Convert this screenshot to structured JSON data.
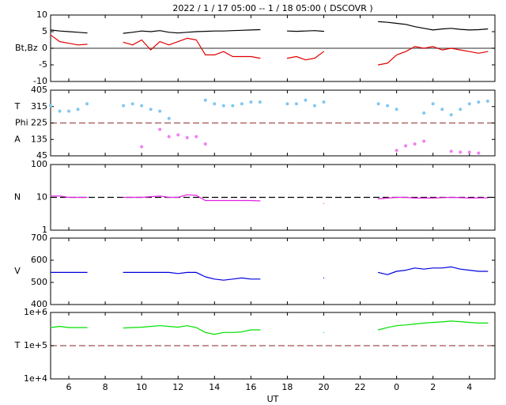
{
  "chart_data": [
    {
      "type": "line",
      "title": "2022 /  1 / 17   05:00 --  1 / 18   05:00 ( DSCOVR )",
      "xlim": [
        5,
        29.4
      ],
      "x": [
        5,
        5.5,
        6,
        6.5,
        7,
        7.5,
        8,
        8.5,
        9,
        9.5,
        10,
        10.5,
        11,
        11.5,
        12,
        12.5,
        13,
        13.5,
        14,
        14.5,
        15,
        15.5,
        16,
        16.5,
        17,
        17.5,
        18,
        18.5,
        19,
        19.5,
        20,
        20.5,
        21,
        21.5,
        22,
        22.5,
        23,
        23.5,
        24,
        24.5,
        25,
        25.5,
        26,
        26.5,
        27,
        27.5,
        28,
        28.5,
        29
      ],
      "ylim": [
        -10,
        10
      ],
      "yticks": [
        -10,
        -5,
        0,
        5,
        10
      ],
      "log": false,
      "ylabels": [
        {
          "value": 0,
          "label": "Bt,Bz"
        }
      ],
      "ref_line": {
        "value": 0,
        "color": "#555555",
        "dashed": false
      },
      "series": [
        {
          "color": "#000000",
          "values": [
            5.5,
            5.2,
            5,
            4.8,
            4.6,
            null,
            null,
            null,
            4.5,
            4.8,
            5.2,
            5,
            5.3,
            4.8,
            4.6,
            4.8,
            5,
            5.1,
            5.2,
            5.2,
            5.3,
            5.4,
            5.5,
            5.6,
            null,
            null,
            5.2,
            5.1,
            5.2,
            5.3,
            5.1,
            null,
            null,
            null,
            null,
            null,
            8,
            7.8,
            7.5,
            7.2,
            6.5,
            6,
            5.5,
            5.8,
            6,
            5.7,
            5.5,
            5.6,
            5.8
          ]
        },
        {
          "color": "#e00000",
          "values": [
            4,
            2,
            1.5,
            1,
            1.2,
            null,
            null,
            null,
            1.8,
            1,
            2.5,
            -0.5,
            2,
            1,
            2,
            3,
            2.5,
            -2,
            -2,
            -1,
            -2.5,
            -2.5,
            -2.5,
            -3,
            null,
            null,
            -3,
            -2.5,
            -3.5,
            -3,
            -1,
            null,
            null,
            null,
            null,
            null,
            -5,
            -4.5,
            -2,
            -1,
            0.5,
            0,
            0.5,
            -0.5,
            0,
            -0.5,
            -1,
            -1.5,
            -1
          ]
        }
      ]
    },
    {
      "type": "scatter",
      "xlim": [
        5,
        29.4
      ],
      "x": [
        5,
        5.5,
        6,
        6.5,
        7,
        7.5,
        8,
        8.5,
        9,
        9.5,
        10,
        10.5,
        11,
        11.5,
        12,
        12.5,
        13,
        13.5,
        14,
        14.5,
        15,
        15.5,
        16,
        16.5,
        17,
        17.5,
        18,
        18.5,
        19,
        19.5,
        20,
        20.5,
        21,
        21.5,
        22,
        22.5,
        23,
        23.5,
        24,
        24.5,
        25,
        25.5,
        26,
        26.5,
        27,
        27.5,
        28,
        28.5,
        29
      ],
      "ylim": [
        45,
        405
      ],
      "yticks": [
        45,
        135,
        225,
        315,
        405
      ],
      "log": false,
      "ylabels": [
        {
          "value": 315,
          "label": "T"
        },
        {
          "value": 225,
          "label": "Phi"
        },
        {
          "value": 135,
          "label": "A"
        }
      ],
      "ref_line": {
        "value": 225,
        "color": "#a05050",
        "dashed": true
      },
      "series": [
        {
          "color": "#80c8f0",
          "values": [
            320,
            290,
            290,
            300,
            330,
            null,
            null,
            null,
            320,
            330,
            320,
            300,
            290,
            250,
            null,
            null,
            null,
            350,
            330,
            320,
            320,
            330,
            340,
            340,
            null,
            null,
            330,
            330,
            350,
            320,
            340,
            null,
            null,
            null,
            null,
            null,
            330,
            320,
            300,
            null,
            null,
            280,
            330,
            300,
            270,
            300,
            330,
            340,
            345
          ]
        },
        {
          "color": "#f080f0",
          "values": [
            null,
            null,
            null,
            null,
            null,
            null,
            null,
            null,
            null,
            null,
            95,
            null,
            190,
            150,
            160,
            145,
            150,
            110,
            null,
            null,
            null,
            null,
            null,
            null,
            null,
            null,
            null,
            null,
            null,
            null,
            null,
            null,
            null,
            null,
            null,
            null,
            null,
            null,
            75,
            100,
            110,
            125,
            null,
            null,
            70,
            65,
            65,
            60,
            null
          ]
        }
      ]
    },
    {
      "type": "line",
      "xlim": [
        5,
        29.4
      ],
      "x": [
        5,
        5.5,
        6,
        6.5,
        7,
        7.5,
        8,
        8.5,
        9,
        9.5,
        10,
        10.5,
        11,
        11.5,
        12,
        12.5,
        13,
        13.5,
        14,
        14.5,
        15,
        15.5,
        16,
        16.5,
        17,
        17.5,
        18,
        18.5,
        19,
        19.5,
        20,
        20.5,
        21,
        21.5,
        22,
        22.5,
        23,
        23.5,
        24,
        24.5,
        25,
        25.5,
        26,
        26.5,
        27,
        27.5,
        28,
        28.5,
        29
      ],
      "ylim": [
        1,
        100
      ],
      "yticks": [
        1,
        10,
        100
      ],
      "log": true,
      "ylabels": [
        {
          "value": 10,
          "label": "N"
        }
      ],
      "ref_line": {
        "value": 10,
        "color": "#000000",
        "dashed": true
      },
      "series": [
        {
          "color": "#e020e0",
          "values": [
            11,
            11,
            10,
            10,
            10,
            null,
            null,
            null,
            10,
            10,
            10,
            10.5,
            11,
            10,
            10,
            12,
            11.5,
            8,
            8,
            8,
            8,
            8,
            8,
            7.8,
            null,
            null,
            null,
            null,
            null,
            null,
            6.5,
            null,
            null,
            null,
            null,
            null,
            9,
            9.5,
            10,
            10,
            9.5,
            9.5,
            9.5,
            9.8,
            10,
            9.8,
            9.5,
            9.6,
            9.6
          ]
        }
      ]
    },
    {
      "type": "line",
      "xlim": [
        5,
        29.4
      ],
      "x": [
        5,
        5.5,
        6,
        6.5,
        7,
        7.5,
        8,
        8.5,
        9,
        9.5,
        10,
        10.5,
        11,
        11.5,
        12,
        12.5,
        13,
        13.5,
        14,
        14.5,
        15,
        15.5,
        16,
        16.5,
        17,
        17.5,
        18,
        18.5,
        19,
        19.5,
        20,
        20.5,
        21,
        21.5,
        22,
        22.5,
        23,
        23.5,
        24,
        24.5,
        25,
        25.5,
        26,
        26.5,
        27,
        27.5,
        28,
        28.5,
        29
      ],
      "ylim": [
        400,
        700
      ],
      "yticks": [
        400,
        500,
        600,
        700
      ],
      "log": false,
      "ylabels": [
        {
          "value": 550,
          "label": "V"
        }
      ],
      "series": [
        {
          "color": "#0000e0",
          "values": [
            545,
            545,
            545,
            545,
            545,
            null,
            null,
            null,
            545,
            545,
            545,
            545,
            545,
            545,
            540,
            545,
            545,
            525,
            515,
            510,
            515,
            520,
            515,
            515,
            null,
            null,
            null,
            null,
            null,
            null,
            520,
            null,
            null,
            null,
            null,
            null,
            545,
            535,
            550,
            555,
            565,
            560,
            565,
            565,
            570,
            560,
            555,
            550,
            550
          ]
        }
      ]
    },
    {
      "type": "line",
      "xlabel": "UT",
      "xlim": [
        5,
        29.4
      ],
      "xticks": [
        6,
        8,
        10,
        12,
        14,
        16,
        18,
        20,
        22,
        {
          "value": 24,
          "label": "0"
        },
        {
          "value": 26,
          "label": "2"
        },
        {
          "value": 28,
          "label": "4"
        }
      ],
      "x": [
        5,
        5.5,
        6,
        6.5,
        7,
        7.5,
        8,
        8.5,
        9,
        9.5,
        10,
        10.5,
        11,
        11.5,
        12,
        12.5,
        13,
        13.5,
        14,
        14.5,
        15,
        15.5,
        16,
        16.5,
        17,
        17.5,
        18,
        18.5,
        19,
        19.5,
        20,
        20.5,
        21,
        21.5,
        22,
        22.5,
        23,
        23.5,
        24,
        24.5,
        25,
        25.5,
        26,
        26.5,
        27,
        27.5,
        28,
        28.5,
        29
      ],
      "ylim": [
        10000,
        1000000
      ],
      "yticks": [
        {
          "value": 10000,
          "label": "1e+4"
        },
        {
          "value": 100000,
          "label": "1e+5"
        },
        {
          "value": 1000000,
          "label": "1e+6"
        }
      ],
      "log": true,
      "ylabels": [
        {
          "value": 100000,
          "label": "T"
        }
      ],
      "ref_line": {
        "value": 100000,
        "color": "#a05050",
        "dashed": true
      },
      "series": [
        {
          "color": "#00e000",
          "values": [
            350000,
            380000,
            350000,
            350000,
            350000,
            null,
            null,
            null,
            340000,
            350000,
            360000,
            380000,
            400000,
            380000,
            360000,
            400000,
            350000,
            250000,
            220000,
            250000,
            250000,
            260000,
            300000,
            300000,
            null,
            null,
            null,
            null,
            null,
            null,
            250000,
            null,
            null,
            null,
            null,
            null,
            300000,
            350000,
            400000,
            420000,
            450000,
            480000,
            500000,
            520000,
            550000,
            530000,
            500000,
            480000,
            480000
          ]
        }
      ]
    }
  ]
}
